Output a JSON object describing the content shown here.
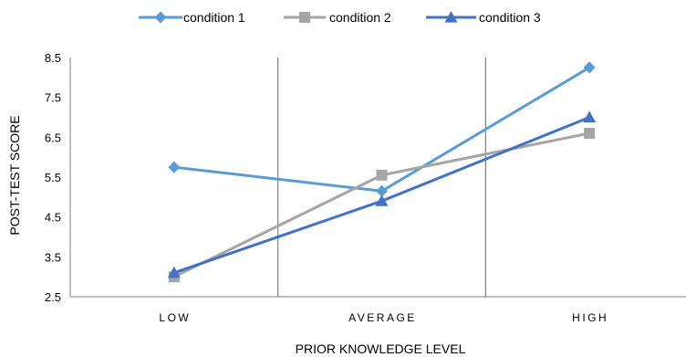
{
  "chart_data": {
    "type": "line",
    "categories": [
      "LOW",
      "AVERAGE",
      "HIGH"
    ],
    "series": [
      {
        "name": "condition 1",
        "values": [
          5.75,
          5.15,
          8.25
        ],
        "color": "#5B9BD5",
        "marker": "diamond"
      },
      {
        "name": "condition 2",
        "values": [
          3.0,
          5.55,
          6.6
        ],
        "color": "#A5A5A5",
        "marker": "square"
      },
      {
        "name": "condition 3",
        "values": [
          3.1,
          4.9,
          7.0
        ],
        "color": "#4472C4",
        "marker": "triangle"
      }
    ],
    "title": "",
    "xlabel": "PRIOR KNOWLEDGE LEVEL",
    "ylabel": "POST-TEST SCORE",
    "ylim": [
      2.5,
      8.5
    ],
    "yticks": [
      "2.5",
      "3.5",
      "4.5",
      "5.5",
      "6.5",
      "7.5",
      "8.5"
    ],
    "legend_position": "top",
    "grid": "vertical separators between categories"
  }
}
